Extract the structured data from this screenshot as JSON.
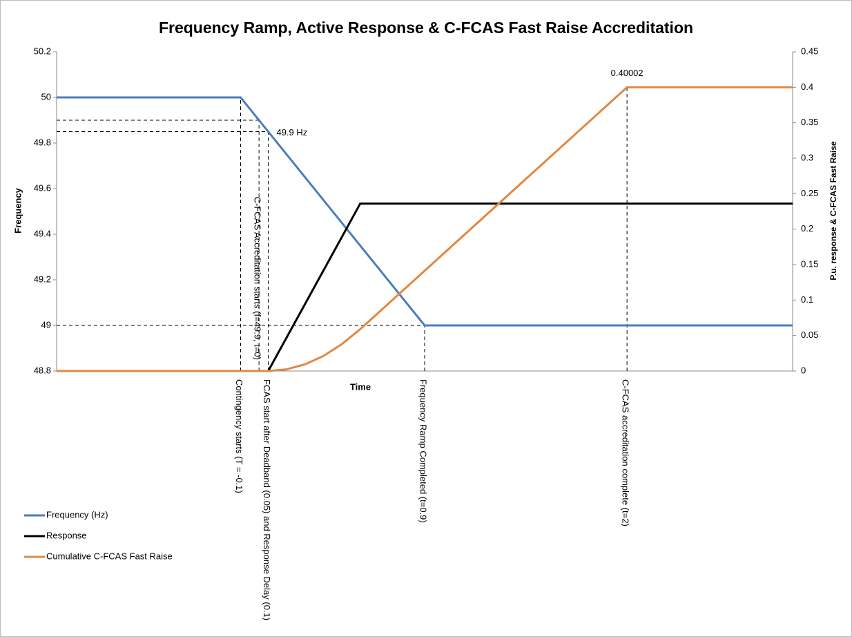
{
  "chart_data": {
    "type": "line",
    "title": "Frequency Ramp, Active Response & C-FCAS Fast Raise Accreditation",
    "x_label": "Time",
    "y_label": "Frequency",
    "y2_label": "P.u. response & C-FCAS Fast Raise",
    "xlim": [
      -1.1,
      2.9
    ],
    "ylim": [
      48.8,
      50.2
    ],
    "yticks": [
      48.8,
      49,
      49.2,
      49.4,
      49.6,
      49.8,
      50,
      50.2
    ],
    "y2lim": [
      0,
      0.45
    ],
    "y2ticks": [
      0,
      0.05,
      0.1,
      0.15,
      0.2,
      0.25,
      0.3,
      0.35,
      0.4,
      0.45
    ],
    "grid": false,
    "legend": "left",
    "series": [
      {
        "name": "Frequency (Hz)",
        "color": "#4a7ebb",
        "x": [
          -1.1,
          -0.1,
          0.9,
          2.9
        ],
        "values": [
          50,
          50,
          49,
          49
        ]
      },
      {
        "name": "Response",
        "color": "#000000",
        "axis": "y2",
        "x": [
          -1.1,
          0.05,
          0.55,
          2.9
        ],
        "values": [
          0,
          0,
          0.236,
          0.236
        ]
      },
      {
        "name": "Cumulative C-FCAS Fast Raise",
        "color": "#e3873f",
        "axis": "y2",
        "x": [
          -1.1,
          0.05,
          0.15,
          0.25,
          0.35,
          0.45,
          0.55,
          2,
          2.9
        ],
        "values": [
          0,
          0,
          0.00236,
          0.0094,
          0.0212,
          0.0378,
          0.059,
          0.40002,
          0.40002
        ],
        "value_labels": [
          null,
          null,
          null,
          null,
          null,
          null,
          null,
          "0.40002",
          null
        ]
      }
    ],
    "annotations": [
      {
        "text": "Contingency starts (T = -0.1)",
        "x": -0.1,
        "y": 50,
        "axis": "y",
        "label_position": "below"
      },
      {
        "text": "C-FCAS Accreditation starts (f=49.9, t=0)",
        "x": 0,
        "y": 49.9,
        "axis": "y",
        "label_position": "above"
      },
      {
        "text": "FCAS start after Deadband (0.05) and Response Delay (0.1)",
        "x": 0.05,
        "y": 49.85,
        "axis": "y",
        "label_position": "below"
      },
      {
        "text": "Frequency Ramp Completed (t=0.9)",
        "x": 0.9,
        "y": 49,
        "axis": "y",
        "label_position": "below"
      },
      {
        "text": "C-FCAS accreditation complete (t=2)",
        "x": 2,
        "y": 0.40002,
        "axis": "y2",
        "label_position": "below"
      }
    ],
    "notes": [
      {
        "text": "49.9 Hz",
        "x": 0.05,
        "y": 49.85
      }
    ]
  }
}
